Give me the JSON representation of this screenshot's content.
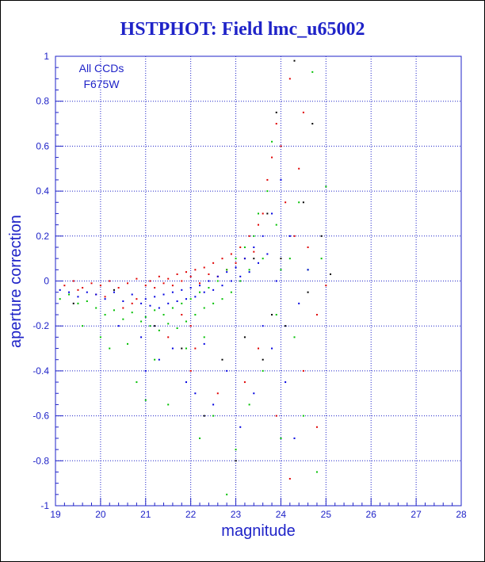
{
  "title": "HSTPHOT: Field lmc_u65002",
  "annotation": {
    "line1": "All CCDs",
    "line2": "F675W"
  },
  "colors": {
    "axis": "#1f23c8",
    "grid": "#1f23c8",
    "frame": "#000000",
    "series": [
      "#e00000",
      "#00c000",
      "#0000e0",
      "#000000"
    ]
  },
  "chart_data": {
    "type": "scatter",
    "title": "HSTPHOT: Field lmc_u65002",
    "xlabel": "magnitude",
    "ylabel": "aperture correction",
    "xlim": [
      19,
      28
    ],
    "ylim": [
      -1,
      1
    ],
    "xticks": [
      "19",
      "20",
      "21",
      "22",
      "23",
      "24",
      "25",
      "26",
      "27",
      "28"
    ],
    "yticks": [
      "-1",
      "-0.8",
      "-0.6",
      "-0.4",
      "-0.2",
      "0",
      "0.2",
      "0.4",
      "0.6",
      "0.8",
      "1"
    ],
    "grid": true,
    "grid_style": "dotted",
    "point_size": "tiny",
    "series": [
      {
        "color": "#e00000",
        "points": [
          [
            19.2,
            -0.02
          ],
          [
            19.4,
            0.0
          ],
          [
            19.6,
            -0.03
          ],
          [
            19.8,
            -0.01
          ],
          [
            20.0,
            -0.02
          ],
          [
            20.2,
            0.0
          ],
          [
            20.4,
            -0.03
          ],
          [
            20.6,
            -0.01
          ],
          [
            20.8,
            0.01
          ],
          [
            21.0,
            -0.02
          ],
          [
            21.1,
            0.0
          ],
          [
            21.2,
            -0.03
          ],
          [
            21.3,
            0.02
          ],
          [
            21.4,
            -0.01
          ],
          [
            21.5,
            0.01
          ],
          [
            21.6,
            -0.02
          ],
          [
            21.7,
            0.03
          ],
          [
            21.8,
            0.0
          ],
          [
            21.9,
            0.04
          ],
          [
            22.0,
            0.02
          ],
          [
            22.1,
            0.05
          ],
          [
            22.2,
            -0.01
          ],
          [
            22.3,
            0.06
          ],
          [
            22.4,
            0.03
          ],
          [
            22.5,
            0.08
          ],
          [
            22.6,
            0.02
          ],
          [
            22.7,
            0.1
          ],
          [
            22.8,
            0.05
          ],
          [
            22.9,
            0.12
          ],
          [
            23.0,
            0.08
          ],
          [
            23.1,
            0.15
          ],
          [
            23.2,
            0.1
          ],
          [
            23.3,
            0.2
          ],
          [
            23.4,
            0.13
          ],
          [
            23.5,
            0.25
          ],
          [
            23.6,
            0.3
          ],
          [
            23.7,
            0.45
          ],
          [
            23.8,
            0.55
          ],
          [
            23.9,
            0.7
          ],
          [
            24.0,
            0.6
          ],
          [
            24.1,
            0.35
          ],
          [
            24.2,
            0.9
          ],
          [
            24.3,
            0.2
          ],
          [
            24.4,
            0.5
          ],
          [
            24.5,
            0.75
          ],
          [
            24.6,
            0.15
          ],
          [
            24.8,
            -0.15
          ],
          [
            25.0,
            -0.02
          ],
          [
            22.0,
            -0.2
          ],
          [
            22.1,
            -0.3
          ],
          [
            22.0,
            -0.4
          ],
          [
            21.8,
            -0.15
          ],
          [
            23.2,
            -0.45
          ],
          [
            23.5,
            -0.3
          ],
          [
            23.9,
            -0.6
          ],
          [
            24.2,
            -0.88
          ],
          [
            24.5,
            -0.4
          ],
          [
            24.8,
            -0.65
          ],
          [
            22.6,
            -0.5
          ],
          [
            21.5,
            -0.25
          ],
          [
            20.8,
            -0.08
          ],
          [
            20.5,
            -0.12
          ],
          [
            19.9,
            -0.06
          ],
          [
            19.5,
            -0.04
          ],
          [
            20.1,
            -0.07
          ],
          [
            20.7,
            -0.1
          ]
        ]
      },
      {
        "color": "#00c000",
        "points": [
          [
            19.1,
            -0.08
          ],
          [
            19.3,
            -0.06
          ],
          [
            19.5,
            -0.1
          ],
          [
            19.7,
            -0.09
          ],
          [
            19.9,
            -0.12
          ],
          [
            20.0,
            -0.25
          ],
          [
            20.1,
            -0.15
          ],
          [
            20.3,
            -0.13
          ],
          [
            20.5,
            -0.17
          ],
          [
            20.7,
            -0.14
          ],
          [
            20.9,
            -0.18
          ],
          [
            21.0,
            -0.16
          ],
          [
            21.1,
            -0.2
          ],
          [
            21.2,
            -0.13
          ],
          [
            21.3,
            -0.22
          ],
          [
            21.4,
            -0.15
          ],
          [
            21.5,
            -0.19
          ],
          [
            21.6,
            -0.12
          ],
          [
            21.7,
            -0.21
          ],
          [
            21.8,
            -0.1
          ],
          [
            21.9,
            -0.18
          ],
          [
            22.0,
            -0.08
          ],
          [
            22.1,
            -0.15
          ],
          [
            22.2,
            -0.05
          ],
          [
            22.3,
            -0.12
          ],
          [
            22.4,
            -0.03
          ],
          [
            22.5,
            -0.1
          ],
          [
            22.6,
            0.0
          ],
          [
            22.7,
            -0.08
          ],
          [
            22.8,
            0.05
          ],
          [
            22.9,
            -0.05
          ],
          [
            23.0,
            0.1
          ],
          [
            23.1,
            0.0
          ],
          [
            23.2,
            0.15
          ],
          [
            23.3,
            0.05
          ],
          [
            23.4,
            0.2
          ],
          [
            23.5,
            0.3
          ],
          [
            23.6,
            0.1
          ],
          [
            23.7,
            0.4
          ],
          [
            23.8,
            0.62
          ],
          [
            23.9,
            0.25
          ],
          [
            24.0,
            0.05
          ],
          [
            24.2,
            0.1
          ],
          [
            24.4,
            0.35
          ],
          [
            24.6,
            0.05
          ],
          [
            24.7,
            0.93
          ],
          [
            24.9,
            0.1
          ],
          [
            25.0,
            0.42
          ],
          [
            20.8,
            -0.45
          ],
          [
            21.0,
            -0.53
          ],
          [
            21.5,
            -0.55
          ],
          [
            22.2,
            -0.7
          ],
          [
            22.5,
            -0.6
          ],
          [
            22.8,
            -0.95
          ],
          [
            23.0,
            -0.75
          ],
          [
            23.3,
            -0.55
          ],
          [
            23.6,
            -0.4
          ],
          [
            24.0,
            -0.7
          ],
          [
            24.5,
            -0.6
          ],
          [
            24.8,
            -0.85
          ],
          [
            20.2,
            -0.3
          ],
          [
            19.6,
            -0.2
          ],
          [
            20.6,
            -0.28
          ],
          [
            21.2,
            -0.35
          ],
          [
            21.9,
            -0.3
          ],
          [
            22.3,
            -0.25
          ],
          [
            23.9,
            -0.15
          ],
          [
            24.3,
            -0.25
          ]
        ]
      },
      {
        "color": "#0000e0",
        "points": [
          [
            19.1,
            -0.04
          ],
          [
            19.3,
            -0.05
          ],
          [
            19.5,
            -0.07
          ],
          [
            19.7,
            -0.05
          ],
          [
            19.9,
            -0.06
          ],
          [
            20.1,
            -0.08
          ],
          [
            20.3,
            -0.05
          ],
          [
            20.5,
            -0.09
          ],
          [
            20.7,
            -0.06
          ],
          [
            20.9,
            -0.1
          ],
          [
            21.0,
            -0.08
          ],
          [
            21.1,
            -0.11
          ],
          [
            21.2,
            -0.07
          ],
          [
            21.3,
            -0.12
          ],
          [
            21.4,
            -0.06
          ],
          [
            21.5,
            -0.1
          ],
          [
            21.6,
            -0.05
          ],
          [
            21.7,
            -0.09
          ],
          [
            21.8,
            -0.04
          ],
          [
            21.9,
            -0.08
          ],
          [
            22.0,
            -0.03
          ],
          [
            22.1,
            -0.07
          ],
          [
            22.2,
            -0.02
          ],
          [
            22.3,
            -0.05
          ],
          [
            22.4,
            0.0
          ],
          [
            22.5,
            -0.04
          ],
          [
            22.6,
            0.02
          ],
          [
            22.7,
            -0.02
          ],
          [
            22.8,
            0.04
          ],
          [
            22.9,
            0.0
          ],
          [
            23.0,
            0.06
          ],
          [
            23.1,
            0.02
          ],
          [
            23.2,
            0.1
          ],
          [
            23.3,
            0.04
          ],
          [
            23.4,
            0.15
          ],
          [
            23.5,
            0.08
          ],
          [
            23.6,
            0.2
          ],
          [
            23.7,
            0.12
          ],
          [
            23.8,
            0.3
          ],
          [
            23.9,
            0.0
          ],
          [
            24.0,
            0.45
          ],
          [
            24.2,
            0.2
          ],
          [
            24.4,
            -0.1
          ],
          [
            24.6,
            0.05
          ],
          [
            21.0,
            -0.4
          ],
          [
            21.3,
            -0.35
          ],
          [
            21.9,
            -0.45
          ],
          [
            22.1,
            -0.5
          ],
          [
            22.5,
            -0.55
          ],
          [
            22.8,
            -0.4
          ],
          [
            23.1,
            -0.65
          ],
          [
            23.4,
            -0.5
          ],
          [
            23.8,
            -0.3
          ],
          [
            24.1,
            -0.45
          ],
          [
            24.3,
            -0.7
          ],
          [
            20.4,
            -0.2
          ],
          [
            20.9,
            -0.25
          ],
          [
            21.6,
            -0.3
          ],
          [
            22.3,
            -0.28
          ],
          [
            23.6,
            -0.2
          ]
        ]
      },
      {
        "color": "#000000",
        "points": [
          [
            19.4,
            -0.1
          ],
          [
            20.3,
            -0.04
          ],
          [
            21.2,
            -0.2
          ],
          [
            21.8,
            -0.3
          ],
          [
            22.3,
            -0.6
          ],
          [
            22.7,
            -0.35
          ],
          [
            23.0,
            -0.8
          ],
          [
            23.2,
            -0.25
          ],
          [
            23.4,
            0.1
          ],
          [
            23.6,
            -0.35
          ],
          [
            23.7,
            0.3
          ],
          [
            23.8,
            -0.15
          ],
          [
            23.9,
            0.75
          ],
          [
            24.0,
            0.1
          ],
          [
            24.1,
            -0.2
          ],
          [
            24.3,
            0.98
          ],
          [
            24.5,
            0.35
          ],
          [
            24.6,
            -0.05
          ],
          [
            24.7,
            0.7
          ],
          [
            24.9,
            0.2
          ],
          [
            25.1,
            0.03
          ]
        ]
      }
    ]
  }
}
